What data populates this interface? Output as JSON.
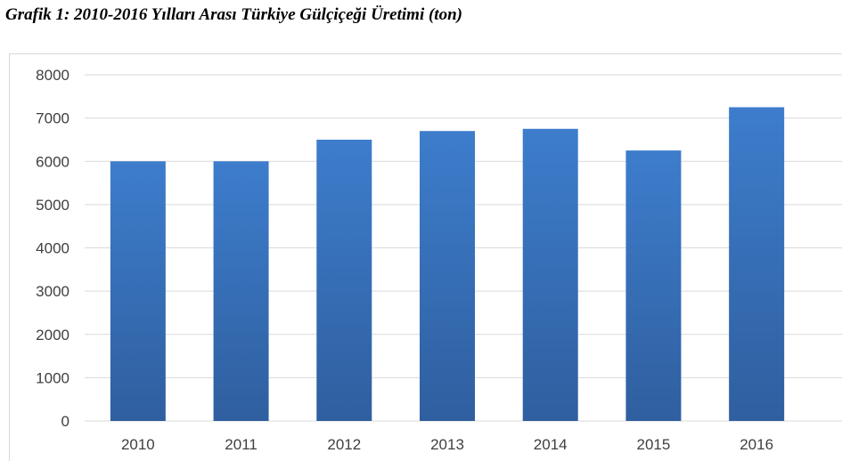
{
  "caption": "Grafik 1: 2010-2016 Yılları Arası Türkiye Gülçiçeği Üretimi (ton)",
  "chart_data": {
    "type": "bar",
    "title": "Grafik 1: 2010-2016 Yılları Arası Türkiye Gülçiçeği Üretimi (ton)",
    "xlabel": "",
    "ylabel": "",
    "categories": [
      "2010",
      "2011",
      "2012",
      "2013",
      "2014",
      "2015",
      "2016"
    ],
    "values": [
      6000,
      6000,
      6500,
      6700,
      6750,
      6250,
      7250
    ],
    "ylim": [
      0,
      8000
    ],
    "yticks": [
      "0",
      "1000",
      "2000",
      "3000",
      "4000",
      "5000",
      "6000",
      "7000",
      "8000"
    ],
    "grid": true,
    "legend": "none",
    "colors": {
      "bar_top": "#3d7dcc",
      "bar_bottom": "#2f5f9f",
      "gridline": "#d9d9d9",
      "tick_text": "#404040"
    }
  }
}
